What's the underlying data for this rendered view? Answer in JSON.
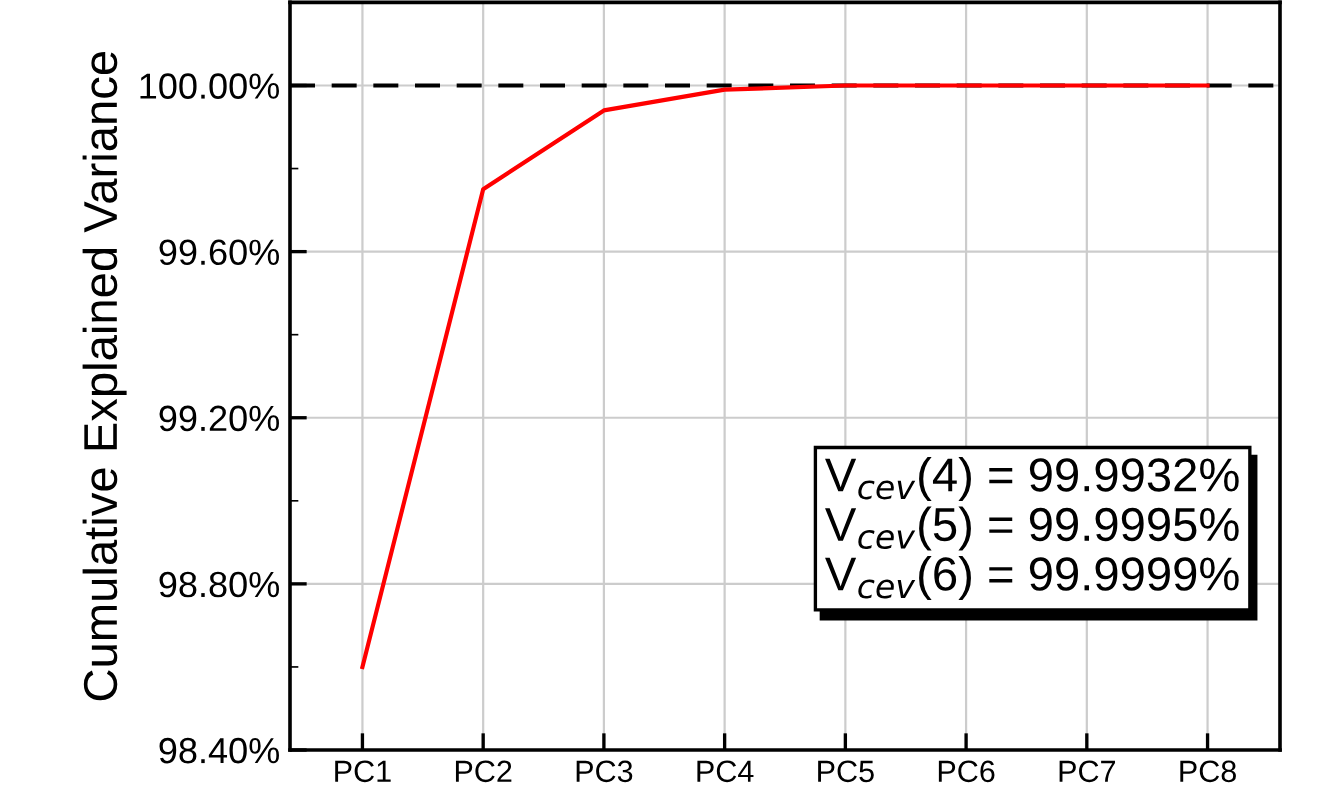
{
  "chart_data": {
    "type": "line",
    "ylabel": "Cumulative Explained Variance",
    "categories": [
      "PC1",
      "PC2",
      "PC3",
      "PC4",
      "PC5",
      "PC6",
      "PC7",
      "PC8"
    ],
    "series": [
      {
        "color": "#ff0000",
        "values": [
          98.6,
          99.75,
          99.94,
          99.99,
          100.0,
          100.0,
          100.0,
          100.0
        ]
      }
    ],
    "ylim": [
      98.4,
      100.2
    ],
    "yticks": [
      {
        "value": 98.4,
        "label": "98.40%"
      },
      {
        "value": 98.8,
        "label": "98.80%"
      },
      {
        "value": 99.2,
        "label": "99.20%"
      },
      {
        "value": 99.6,
        "label": "99.60%"
      },
      {
        "value": 100.0,
        "label": "100.00%"
      }
    ],
    "ref_lines": [
      {
        "axis": "y",
        "value": 100.0,
        "color": "#000000",
        "line_style": "dashed"
      }
    ],
    "annotations": [
      "V$_{cev}$(4) = 99.9932%",
      "V$_{cev}$(5) = 99.9995%",
      "V$_{cev}$(6) = 99.9999%"
    ],
    "grid": true,
    "marker": "none",
    "line_style": "solid",
    "legend": false
  }
}
